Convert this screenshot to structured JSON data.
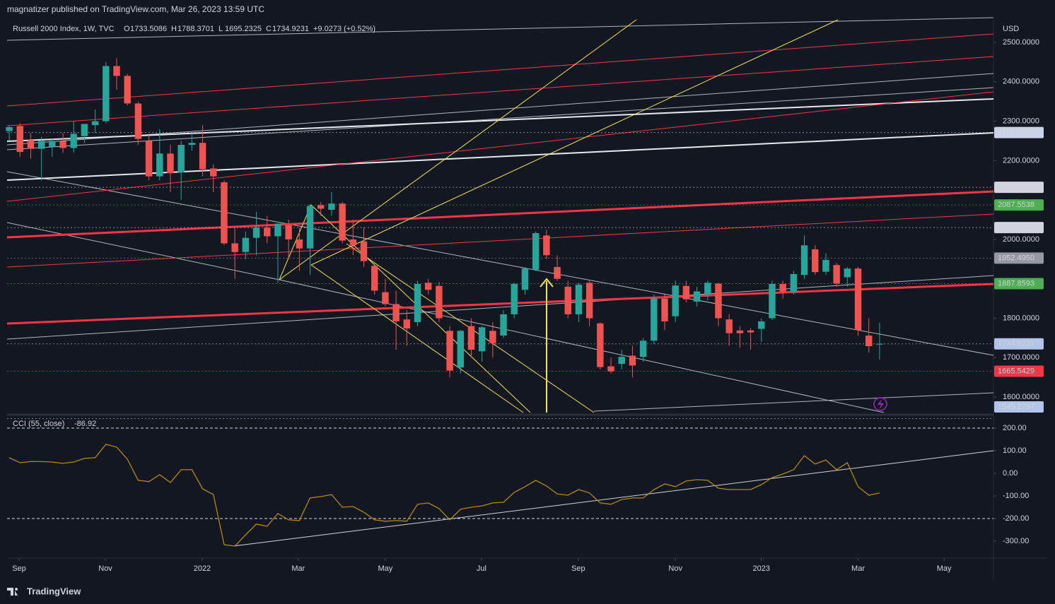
{
  "header": {
    "publisher": "magnatizer published on TradingView.com, Mar 26, 2023 13:59 UTC"
  },
  "footer": {
    "brand": "TradingView"
  },
  "chart_data": [
    {
      "type": "candlestick",
      "symbol": "Russell 2000 Index, 1W, TVC",
      "currency": "USD",
      "ohlc_keys": [
        "O",
        "H",
        "L",
        "C"
      ],
      "change": "+9.0273 (+0.52%)",
      "up_color": "#26a69a",
      "down_color": "#ef5350",
      "candles": [
        {
          "open": 2275,
          "high": 2290,
          "low": 2250,
          "close": 2285
        },
        {
          "open": 2288,
          "high": 2295,
          "low": 2210,
          "close": 2222
        },
        {
          "open": 2252,
          "high": 2270,
          "low": 2205,
          "close": 2230
        },
        {
          "open": 2230,
          "high": 2260,
          "low": 2150,
          "close": 2250
        },
        {
          "open": 2235,
          "high": 2255,
          "low": 2210,
          "close": 2250
        },
        {
          "open": 2250,
          "high": 2270,
          "low": 2220,
          "close": 2232
        },
        {
          "open": 2232,
          "high": 2300,
          "low": 2220,
          "close": 2268
        },
        {
          "open": 2262,
          "high": 2290,
          "low": 2245,
          "close": 2293
        },
        {
          "open": 2290,
          "high": 2330,
          "low": 2270,
          "close": 2300
        },
        {
          "open": 2300,
          "high": 2450,
          "low": 2295,
          "close": 2440
        },
        {
          "open": 2440,
          "high": 2460,
          "low": 2380,
          "close": 2415
        },
        {
          "open": 2415,
          "high": 2420,
          "low": 2340,
          "close": 2345
        },
        {
          "open": 2345,
          "high": 2350,
          "low": 2240,
          "close": 2255
        },
        {
          "open": 2250,
          "high": 2265,
          "low": 2150,
          "close": 2160
        },
        {
          "open": 2160,
          "high": 2280,
          "low": 2150,
          "close": 2218
        },
        {
          "open": 2218,
          "high": 2240,
          "low": 2120,
          "close": 2168
        },
        {
          "open": 2170,
          "high": 2250,
          "low": 2100,
          "close": 2240
        },
        {
          "open": 2240,
          "high": 2270,
          "low": 2225,
          "close": 2245
        },
        {
          "open": 2245,
          "high": 2290,
          "low": 2160,
          "close": 2178
        },
        {
          "open": 2180,
          "high": 2190,
          "low": 2120,
          "close": 2160
        },
        {
          "open": 2145,
          "high": 2150,
          "low": 1985,
          "close": 1990
        },
        {
          "open": 1990,
          "high": 2030,
          "low": 1900,
          "close": 1968
        },
        {
          "open": 1968,
          "high": 2020,
          "low": 1950,
          "close": 2004
        },
        {
          "open": 2004,
          "high": 2070,
          "low": 1960,
          "close": 2030
        },
        {
          "open": 2030,
          "high": 2060,
          "low": 1990,
          "close": 2008
        },
        {
          "open": 2008,
          "high": 2040,
          "low": 1890,
          "close": 2040
        },
        {
          "open": 2036,
          "high": 2050,
          "low": 1950,
          "close": 2000
        },
        {
          "open": 2000,
          "high": 2030,
          "low": 1920,
          "close": 1977
        },
        {
          "open": 1977,
          "high": 2090,
          "low": 1910,
          "close": 2085
        },
        {
          "open": 2087,
          "high": 2095,
          "low": 2060,
          "close": 2078
        },
        {
          "open": 2075,
          "high": 2120,
          "low": 2060,
          "close": 2091
        },
        {
          "open": 2091,
          "high": 2095,
          "low": 1990,
          "close": 1997
        },
        {
          "open": 2000,
          "high": 2050,
          "low": 1960,
          "close": 1985
        },
        {
          "open": 1995,
          "high": 2030,
          "low": 1930,
          "close": 1945
        },
        {
          "open": 1933,
          "high": 1940,
          "low": 1860,
          "close": 1870
        },
        {
          "open": 1866,
          "high": 1900,
          "low": 1830,
          "close": 1836
        },
        {
          "open": 1836,
          "high": 1870,
          "low": 1720,
          "close": 1792
        },
        {
          "open": 1797,
          "high": 1820,
          "low": 1730,
          "close": 1774
        },
        {
          "open": 1790,
          "high": 1895,
          "low": 1780,
          "close": 1887
        },
        {
          "open": 1890,
          "high": 1900,
          "low": 1860,
          "close": 1872
        },
        {
          "open": 1882,
          "high": 1892,
          "low": 1790,
          "close": 1800
        },
        {
          "open": 1768,
          "high": 1780,
          "low": 1650,
          "close": 1667
        },
        {
          "open": 1675,
          "high": 1770,
          "low": 1660,
          "close": 1768
        },
        {
          "open": 1780,
          "high": 1800,
          "low": 1700,
          "close": 1720
        },
        {
          "open": 1716,
          "high": 1780,
          "low": 1690,
          "close": 1777
        },
        {
          "open": 1768,
          "high": 1790,
          "low": 1700,
          "close": 1737
        },
        {
          "open": 1756,
          "high": 1820,
          "low": 1750,
          "close": 1810
        },
        {
          "open": 1810,
          "high": 1890,
          "low": 1800,
          "close": 1887
        },
        {
          "open": 1872,
          "high": 1930,
          "low": 1860,
          "close": 1926
        },
        {
          "open": 1923,
          "high": 2020,
          "low": 1920,
          "close": 2016
        },
        {
          "open": 2010,
          "high": 2025,
          "low": 1950,
          "close": 1960
        },
        {
          "open": 1930,
          "high": 1960,
          "low": 1895,
          "close": 1900
        },
        {
          "open": 1880,
          "high": 1895,
          "low": 1800,
          "close": 1810
        },
        {
          "open": 1810,
          "high": 1890,
          "low": 1790,
          "close": 1885
        },
        {
          "open": 1890,
          "high": 1895,
          "low": 1780,
          "close": 1800
        },
        {
          "open": 1787,
          "high": 1790,
          "low": 1670,
          "close": 1676
        },
        {
          "open": 1678,
          "high": 1700,
          "low": 1660,
          "close": 1665
        },
        {
          "open": 1684,
          "high": 1720,
          "low": 1670,
          "close": 1702
        },
        {
          "open": 1705,
          "high": 1730,
          "low": 1650,
          "close": 1680
        },
        {
          "open": 1702,
          "high": 1750,
          "low": 1690,
          "close": 1743
        },
        {
          "open": 1743,
          "high": 1860,
          "low": 1735,
          "close": 1850
        },
        {
          "open": 1850,
          "high": 1860,
          "low": 1770,
          "close": 1792
        },
        {
          "open": 1805,
          "high": 1895,
          "low": 1790,
          "close": 1883
        },
        {
          "open": 1882,
          "high": 1895,
          "low": 1840,
          "close": 1848
        },
        {
          "open": 1842,
          "high": 1880,
          "low": 1830,
          "close": 1868
        },
        {
          "open": 1860,
          "high": 1895,
          "low": 1845,
          "close": 1890
        },
        {
          "open": 1888,
          "high": 1890,
          "low": 1780,
          "close": 1800
        },
        {
          "open": 1797,
          "high": 1810,
          "low": 1730,
          "close": 1762
        },
        {
          "open": 1769,
          "high": 1780,
          "low": 1725,
          "close": 1762
        },
        {
          "open": 1769,
          "high": 1775,
          "low": 1720,
          "close": 1764
        },
        {
          "open": 1773,
          "high": 1800,
          "low": 1740,
          "close": 1792
        },
        {
          "open": 1800,
          "high": 1895,
          "low": 1795,
          "close": 1887
        },
        {
          "open": 1887,
          "high": 1895,
          "low": 1850,
          "close": 1868
        },
        {
          "open": 1866,
          "high": 1920,
          "low": 1860,
          "close": 1912
        },
        {
          "open": 1910,
          "high": 2010,
          "low": 1900,
          "close": 1985
        },
        {
          "open": 1975,
          "high": 1985,
          "low": 1910,
          "close": 1917
        },
        {
          "open": 1918,
          "high": 1965,
          "low": 1910,
          "close": 1948
        },
        {
          "open": 1935,
          "high": 1940,
          "low": 1880,
          "close": 1888
        },
        {
          "open": 1904,
          "high": 1930,
          "low": 1880,
          "close": 1926
        },
        {
          "open": 1926,
          "high": 1930,
          "low": 1755,
          "close": 1770
        },
        {
          "open": 1756,
          "high": 1800,
          "low": 1712,
          "close": 1729
        },
        {
          "open": 1733.5086,
          "high": 1788.3701,
          "low": 1695.2325,
          "close": 1734.9231
        }
      ],
      "xlim": [
        -0.2,
        91.6
      ],
      "xticks": [
        {
          "value": 0.92,
          "label": "Sep"
        },
        {
          "value": 8.95,
          "label": "Nov"
        },
        {
          "value": 17.96,
          "label": "2022"
        },
        {
          "value": 26.9,
          "label": "Mar"
        },
        {
          "value": 35.0,
          "label": "May"
        },
        {
          "value": 43.95,
          "label": "Jul"
        },
        {
          "value": 52.96,
          "label": "Sep"
        },
        {
          "value": 62.0,
          "label": "Nov"
        },
        {
          "value": 70.0,
          "label": "2023"
        },
        {
          "value": 79.0,
          "label": "Mar"
        },
        {
          "value": 87.0,
          "label": "May"
        }
      ],
      "ylim": [
        1560.6,
        2557.4
      ],
      "yticks": [
        {
          "value": 2500,
          "label": "2500.0000"
        },
        {
          "value": 2400,
          "label": "2400.0000"
        },
        {
          "value": 2300,
          "label": "2300.0000"
        },
        {
          "value": 2200,
          "label": "2200.0000"
        },
        {
          "value": 2000,
          "label": "2000.0000"
        },
        {
          "value": 1800,
          "label": "1800.0000"
        },
        {
          "value": 1700,
          "label": "1700.0000"
        },
        {
          "value": 1600,
          "label": "1600.0000"
        }
      ],
      "price_labels": [
        {
          "value": 2271.2423,
          "label": "2271.2423",
          "color": "#c9d3e8",
          "text_color": "#131722"
        },
        {
          "value": 2132.2527,
          "label": "2132.2527",
          "color": "#d1d4dc",
          "text_color": "#131722"
        },
        {
          "value": 2087.5538,
          "label": "2087.5538",
          "color": "#4caf50",
          "text_color": "#ffffff"
        },
        {
          "value": 2030.0509,
          "label": "2030.0509",
          "color": "#d1d4dc",
          "text_color": "#131722"
        },
        {
          "value": 1952.495,
          "label": "1952.4950",
          "color": "#9598a1",
          "text_color": "#ffffff"
        },
        {
          "value": 1887.8593,
          "label": "1887.8593",
          "color": "#4caf50",
          "text_color": "#ffffff"
        },
        {
          "value": 1734.9231,
          "label": "1734.9231",
          "color": "#b2c5e8",
          "text_color": "#131722"
        },
        {
          "value": 1665.5429,
          "label": "1665.5429",
          "color": "#f23645",
          "text_color": "#ffffff"
        },
        {
          "value": 1545.2797,
          "label": "1545.2797",
          "color": "#b2c5e8",
          "text_color": "#131722"
        }
      ]
    },
    {
      "type": "line",
      "name": "CCI (55, close)",
      "color": "#b8860b",
      "values": [
        69,
        47,
        52,
        52,
        50,
        44,
        50,
        66,
        69,
        128,
        116,
        62,
        -31,
        -37,
        -6,
        -41,
        16,
        16,
        -69,
        -94,
        -316,
        -322,
        -272,
        -225,
        -234,
        -178,
        -206,
        -209,
        -109,
        -103,
        -94,
        -150,
        -147,
        -172,
        -206,
        -212,
        -209,
        -212,
        -137,
        -131,
        -156,
        -206,
        -159,
        -150,
        -144,
        -131,
        -128,
        -84,
        -59,
        -31,
        -56,
        -91,
        -97,
        -72,
        -87,
        -131,
        -137,
        -116,
        -109,
        -109,
        -72,
        -47,
        -59,
        -34,
        -28,
        -31,
        -66,
        -72,
        -72,
        -72,
        -50,
        -19,
        -3,
        16,
        78,
        41,
        59,
        16,
        47,
        -59,
        -97,
        -86.92
      ],
      "xlim": [
        -0.2,
        91.6
      ],
      "ylim": [
        -375,
        250
      ],
      "yticks": [
        {
          "value": 200,
          "label": "200.00"
        },
        {
          "value": 100,
          "label": "100.00"
        },
        {
          "value": 0,
          "label": "0.00"
        },
        {
          "value": -100,
          "label": "-100.00"
        },
        {
          "value": -200,
          "label": "-200.00"
        },
        {
          "value": -300,
          "label": "-300.00"
        }
      ],
      "bands": [
        200,
        -200
      ]
    }
  ]
}
